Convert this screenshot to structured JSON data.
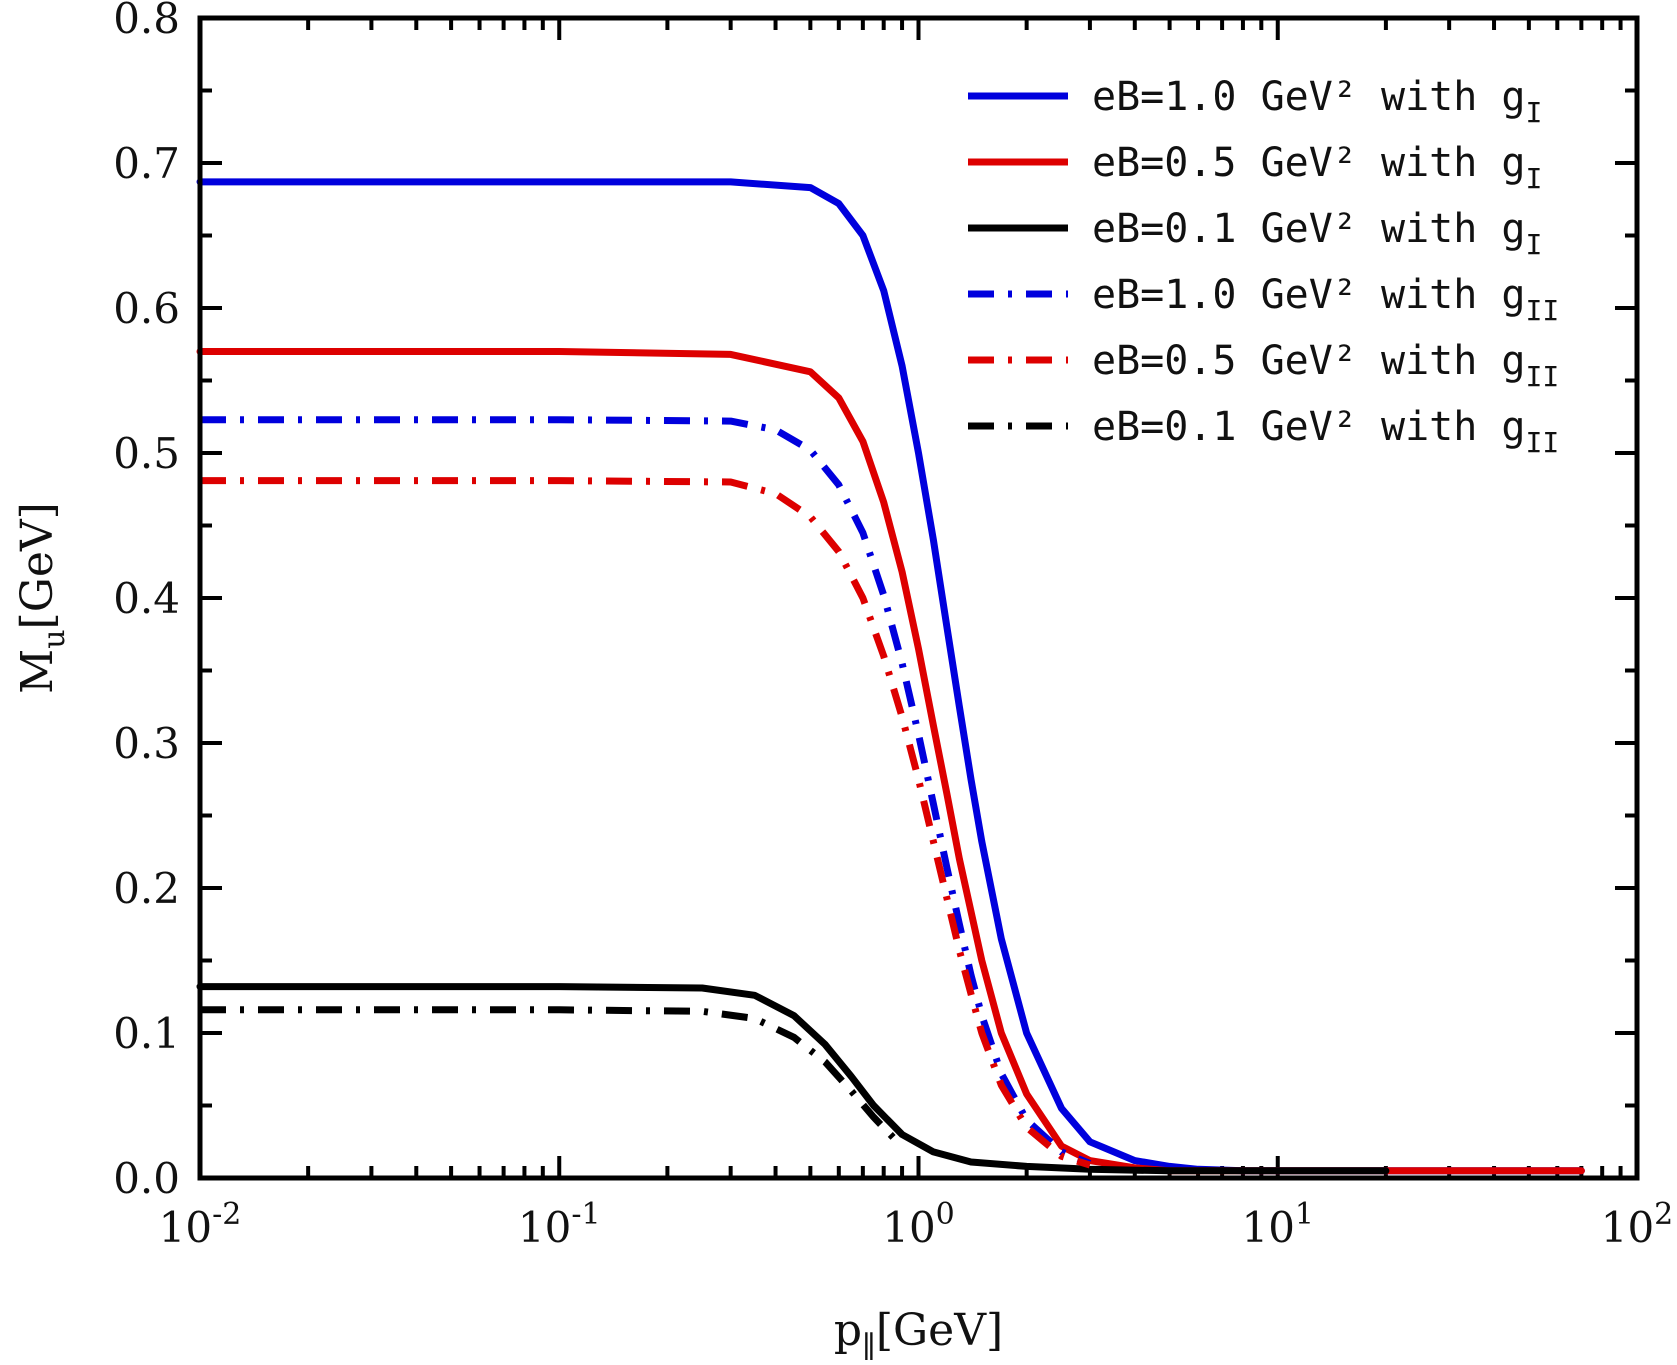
{
  "chart_data": {
    "type": "line",
    "x_scale": "log",
    "xlim": [
      0.01,
      100
    ],
    "ylim": [
      0.0,
      0.8
    ],
    "grid": false,
    "legend_position": "top-right",
    "xlabel": {
      "main": "p",
      "sub": "∥",
      "unit": "[GeV]"
    },
    "ylabel": {
      "main": "M",
      "sub": "u",
      "unit": "[GeV]"
    },
    "x_ticks": [
      {
        "value": 0.01,
        "base": "10",
        "exp": "-2"
      },
      {
        "value": 0.1,
        "base": "10",
        "exp": "-1"
      },
      {
        "value": 1,
        "base": "10",
        "exp": "0"
      },
      {
        "value": 10,
        "base": "10",
        "exp": "1"
      },
      {
        "value": 100,
        "base": "10",
        "exp": "2"
      }
    ],
    "y_ticks": [
      {
        "value": 0.0,
        "label": "0.0"
      },
      {
        "value": 0.1,
        "label": "0.1"
      },
      {
        "value": 0.2,
        "label": "0.2"
      },
      {
        "value": 0.3,
        "label": "0.3"
      },
      {
        "value": 0.4,
        "label": "0.4"
      },
      {
        "value": 0.5,
        "label": "0.5"
      },
      {
        "value": 0.6,
        "label": "0.6"
      },
      {
        "value": 0.7,
        "label": "0.7"
      },
      {
        "value": 0.8,
        "label": "0.8"
      }
    ],
    "series": [
      {
        "name": "eB=1.0  GeV² with g_I",
        "label_text": "eB=1.0  GeV² with g",
        "label_sub": "I",
        "color": "#0000dd",
        "style": "solid",
        "x": [
          0.01,
          0.1,
          0.3,
          0.5,
          0.6,
          0.7,
          0.8,
          0.9,
          1.0,
          1.1,
          1.2,
          1.3,
          1.4,
          1.5,
          1.7,
          2.0,
          2.5,
          3.0,
          4.0,
          5.0,
          6.0,
          8.0,
          10,
          20,
          50,
          70
        ],
        "y": [
          0.687,
          0.687,
          0.687,
          0.683,
          0.672,
          0.65,
          0.612,
          0.56,
          0.5,
          0.44,
          0.38,
          0.325,
          0.275,
          0.232,
          0.165,
          0.1,
          0.048,
          0.025,
          0.012,
          0.008,
          0.006,
          0.005,
          0.005,
          0.005,
          0.005,
          0.005
        ]
      },
      {
        "name": "eB=0.5  GeV² with g_I",
        "label_text": "eB=0.5  GeV² with g",
        "label_sub": "I",
        "color": "#dd0000",
        "style": "solid",
        "x": [
          0.01,
          0.1,
          0.3,
          0.5,
          0.6,
          0.7,
          0.8,
          0.9,
          1.0,
          1.1,
          1.2,
          1.3,
          1.5,
          1.7,
          2.0,
          2.5,
          3.0,
          4.0,
          5.0,
          6.0,
          10,
          20,
          70
        ],
        "y": [
          0.57,
          0.57,
          0.568,
          0.556,
          0.538,
          0.508,
          0.466,
          0.418,
          0.365,
          0.312,
          0.265,
          0.22,
          0.15,
          0.1,
          0.058,
          0.022,
          0.012,
          0.007,
          0.005,
          0.005,
          0.005,
          0.005,
          0.005
        ]
      },
      {
        "name": "eB=0.1  GeV² with g_I",
        "label_text": "eB=0.1  GeV² with g",
        "label_sub": "I",
        "color": "#000000",
        "style": "solid",
        "x": [
          0.01,
          0.1,
          0.25,
          0.35,
          0.45,
          0.55,
          0.65,
          0.75,
          0.9,
          1.1,
          1.4,
          2.0,
          3.0,
          5.0,
          10,
          20
        ],
        "y": [
          0.132,
          0.132,
          0.131,
          0.126,
          0.112,
          0.092,
          0.07,
          0.05,
          0.03,
          0.018,
          0.011,
          0.008,
          0.006,
          0.005,
          0.005,
          0.005
        ]
      },
      {
        "name": "eB=1.0  GeV² with g_II",
        "label_text": "eB=1.0  GeV² with g",
        "label_sub": "II",
        "color": "#0000dd",
        "style": "dashdot",
        "x": [
          0.01,
          0.1,
          0.3,
          0.4,
          0.5,
          0.6,
          0.7,
          0.8,
          0.9,
          1.0,
          1.1,
          1.2,
          1.3,
          1.4,
          1.5,
          1.7,
          2.0,
          2.5,
          3.0
        ],
        "y": [
          0.523,
          0.523,
          0.522,
          0.516,
          0.502,
          0.478,
          0.445,
          0.402,
          0.355,
          0.306,
          0.258,
          0.214,
          0.175,
          0.14,
          0.112,
          0.072,
          0.04,
          0.018,
          0.01
        ]
      },
      {
        "name": "eB=0.5  GeV² with g_II",
        "label_text": "eB=0.5  GeV² with g",
        "label_sub": "II",
        "color": "#dd0000",
        "style": "dashdot",
        "x": [
          0.01,
          0.1,
          0.3,
          0.4,
          0.5,
          0.6,
          0.7,
          0.8,
          0.9,
          1.0,
          1.1,
          1.2,
          1.3,
          1.4,
          1.5,
          1.7,
          2.0,
          2.5,
          3.0
        ],
        "y": [
          0.481,
          0.481,
          0.48,
          0.472,
          0.456,
          0.432,
          0.4,
          0.36,
          0.318,
          0.275,
          0.232,
          0.193,
          0.157,
          0.127,
          0.1,
          0.064,
          0.035,
          0.015,
          0.009
        ]
      },
      {
        "name": "eB=0.1  GeV² with g_II",
        "label_text": "eB=0.1  GeV² with g",
        "label_sub": "II",
        "color": "#000000",
        "style": "dashdot",
        "x": [
          0.01,
          0.1,
          0.25,
          0.35,
          0.45,
          0.55,
          0.65,
          0.75,
          0.85
        ],
        "y": [
          0.116,
          0.116,
          0.115,
          0.11,
          0.097,
          0.08,
          0.06,
          0.042,
          0.028
        ]
      }
    ]
  }
}
